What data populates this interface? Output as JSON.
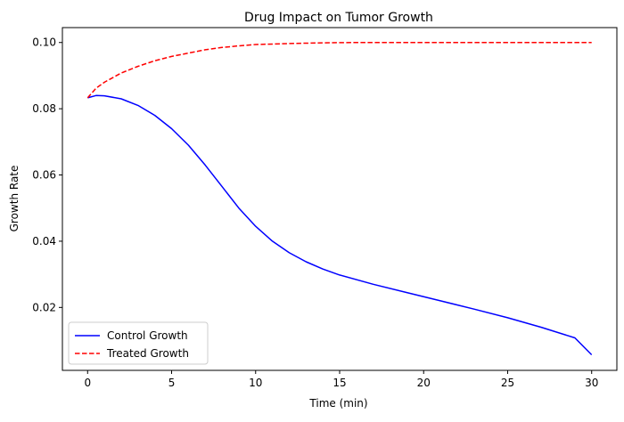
{
  "chart_data": {
    "type": "line",
    "title": "Drug Impact on Tumor Growth",
    "xlabel": "Time (min)",
    "ylabel": "Growth Rate",
    "xlim": [
      -1.5,
      31.5
    ],
    "ylim": [
      0.001,
      0.1045
    ],
    "xticks": [
      0,
      5,
      10,
      15,
      20,
      25,
      30
    ],
    "yticks": [
      0.02,
      0.04,
      0.06,
      0.08,
      0.1
    ],
    "ytick_labels": [
      "0.02",
      "0.04",
      "0.06",
      "0.08",
      "0.10"
    ],
    "grid": false,
    "legend_position": "lower-left",
    "series": [
      {
        "name": "Control Growth",
        "color": "#0000ff",
        "linestyle": "solid",
        "x": [
          0,
          0.5,
          1,
          2,
          3,
          4,
          5,
          6,
          7,
          8,
          9,
          10,
          11,
          12,
          13,
          14,
          15,
          17,
          19,
          21,
          23,
          25,
          27,
          29,
          30
        ],
        "y": [
          0.0833,
          0.084,
          0.0839,
          0.083,
          0.081,
          0.078,
          0.074,
          0.069,
          0.063,
          0.0565,
          0.05,
          0.0445,
          0.04,
          0.0365,
          0.0338,
          0.0316,
          0.0298,
          0.027,
          0.0245,
          0.022,
          0.0195,
          0.0169,
          0.014,
          0.0108,
          0.0057
        ]
      },
      {
        "name": "Treated Growth",
        "color": "#ff0000",
        "linestyle": "dashed",
        "x": [
          0,
          0.5,
          1,
          2,
          3,
          4,
          5,
          6,
          7,
          8,
          9,
          10,
          12,
          14,
          16,
          18,
          20,
          25,
          30
        ],
        "y": [
          0.0833,
          0.0862,
          0.088,
          0.0908,
          0.0928,
          0.0945,
          0.0958,
          0.0968,
          0.0978,
          0.0985,
          0.099,
          0.0994,
          0.0997,
          0.0999,
          0.1,
          0.1,
          0.1,
          0.1,
          0.1
        ]
      }
    ]
  }
}
